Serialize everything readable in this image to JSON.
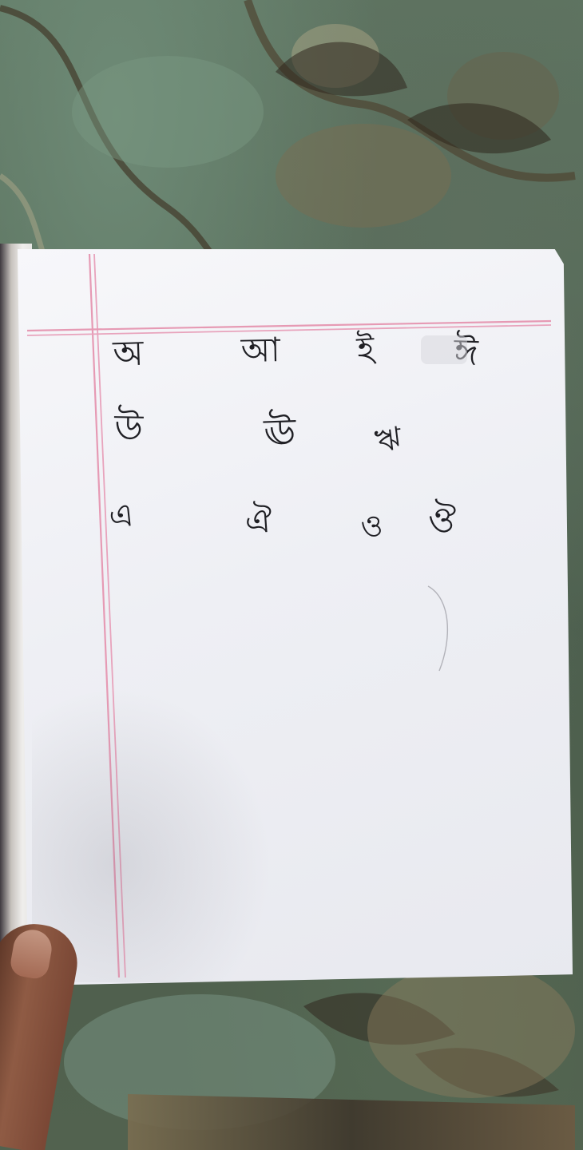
{
  "scene": {
    "background_colors": {
      "carpet": "#5f7763",
      "pattern_dark": "#4a3a28",
      "pattern_light": "#b9b08f",
      "paper": "#f1f2f7",
      "margin_line": "#e69ab4",
      "ink": "#1f1f24",
      "skin": "#8f5b44"
    }
  },
  "page": {
    "rows": [
      {
        "letters": [
          {
            "text": "অ"
          },
          {
            "text": "আ"
          },
          {
            "text": "ই"
          },
          {
            "text": "ঈ"
          }
        ]
      },
      {
        "letters": [
          {
            "text": "উ"
          },
          {
            "text": "ঊ"
          },
          {
            "text": "ঋ"
          }
        ]
      },
      {
        "letters": [
          {
            "text": "এ"
          },
          {
            "text": "ঐ"
          },
          {
            "text": "ও"
          },
          {
            "text": "ঔ"
          }
        ]
      }
    ]
  }
}
